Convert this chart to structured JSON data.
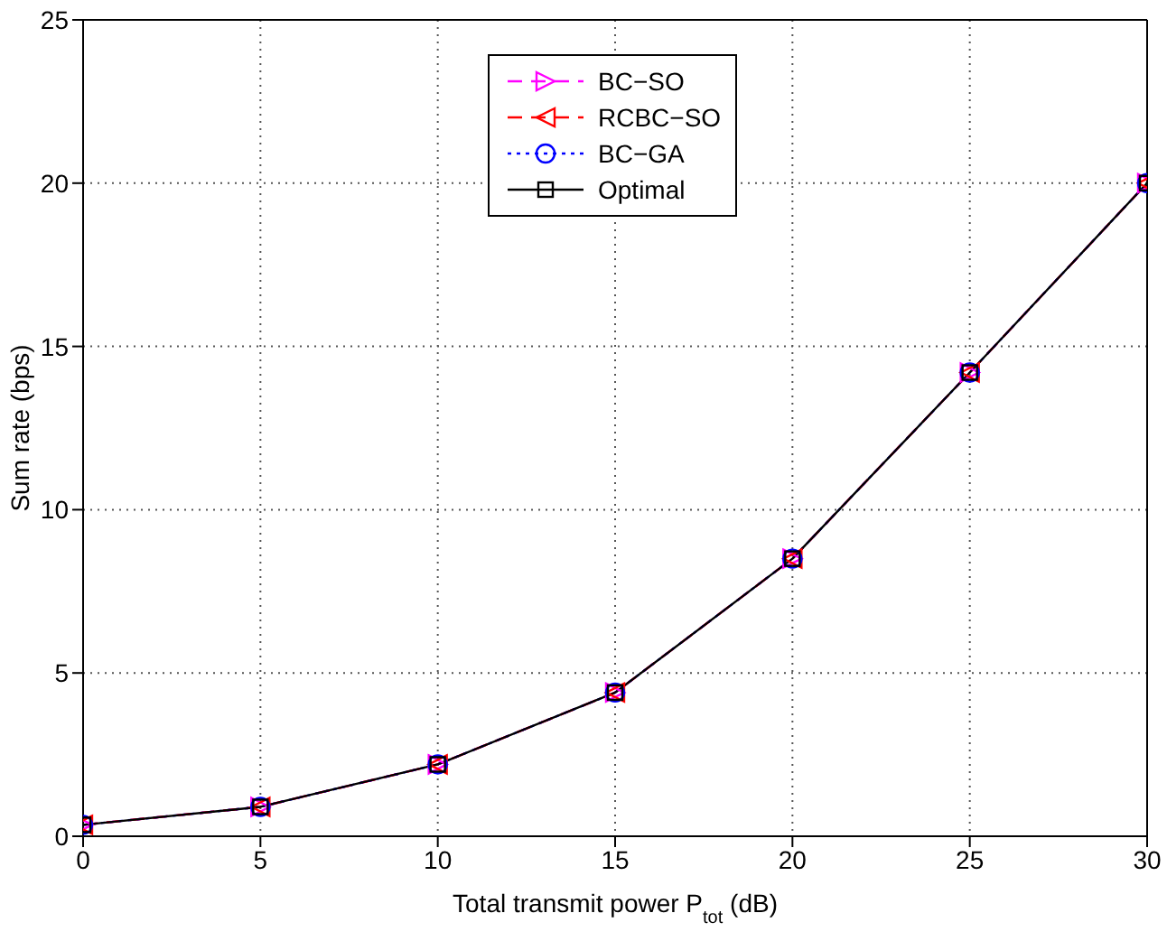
{
  "chart_data": {
    "type": "line",
    "xlabel": "Total transmit power P$_{tot}$ (dB)",
    "ylabel": "Sum rate (bps)",
    "x": [
      0,
      5,
      10,
      15,
      20,
      25,
      30
    ],
    "series": [
      {
        "name": "BC−SO",
        "color": "#ff00ff",
        "marker": "triangle",
        "line_style": "dashed",
        "values": [
          0.35,
          0.9,
          2.2,
          4.4,
          8.5,
          14.2,
          20.0
        ]
      },
      {
        "name": "RCBC−SO",
        "color": "#ff0000",
        "marker": "triangle",
        "line_style": "dashed",
        "values": [
          0.35,
          0.9,
          2.2,
          4.4,
          8.5,
          14.2,
          20.0
        ]
      },
      {
        "name": "BC−GA",
        "color": "#0000ff",
        "marker": "circle",
        "line_style": "dotted",
        "values": [
          0.35,
          0.9,
          2.2,
          4.4,
          8.5,
          14.2,
          20.0
        ]
      },
      {
        "name": "Optimal",
        "color": "#000000",
        "marker": "square",
        "line_style": "solid",
        "values": [
          0.35,
          0.9,
          2.2,
          4.4,
          8.5,
          14.2,
          20.0
        ]
      }
    ],
    "xlim": [
      0,
      30
    ],
    "xticks": [
      0,
      5,
      10,
      15,
      20,
      25,
      30
    ],
    "ylim": [
      0,
      25
    ],
    "yticks": [
      0,
      5,
      10,
      15,
      20,
      25
    ],
    "grid": true,
    "legend": "top"
  }
}
